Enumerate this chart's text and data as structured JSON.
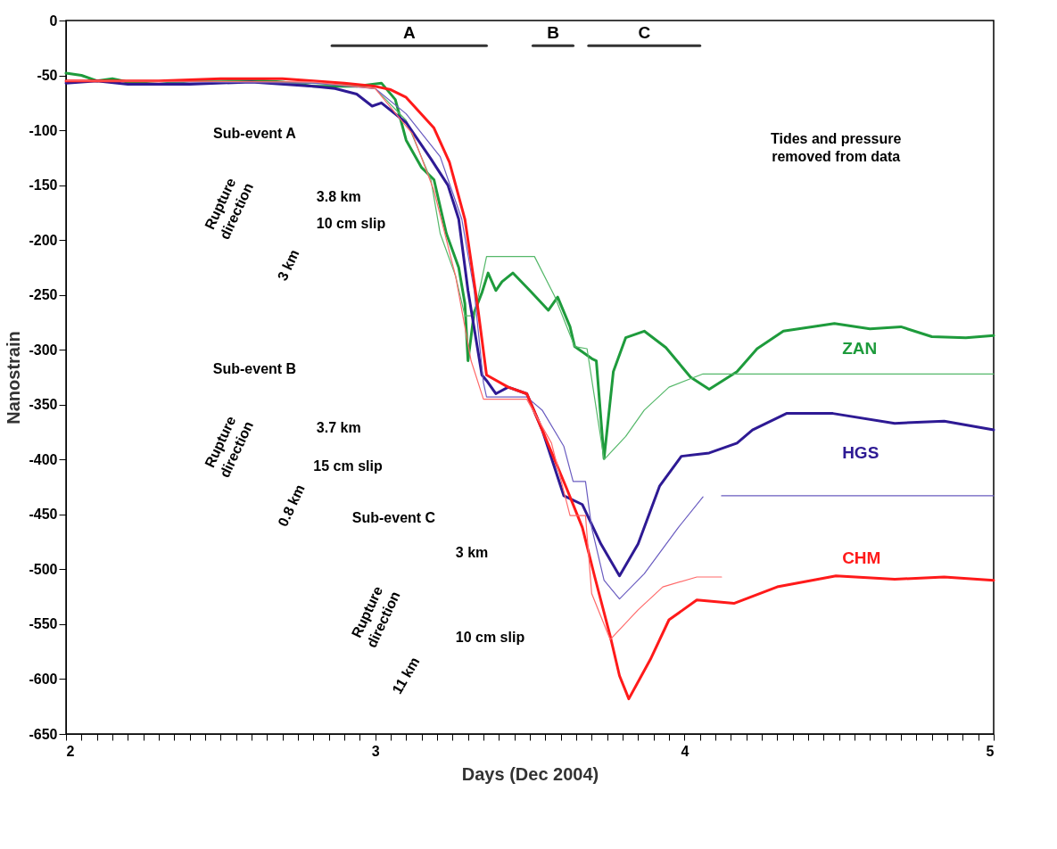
{
  "chart_data": {
    "type": "line",
    "xlabel": "Days (Dec 2004)",
    "ylabel": "Nanostrain",
    "xlim": [
      2,
      5
    ],
    "ylim": [
      -650,
      0
    ],
    "xticks": [
      2,
      {
        "value": 2.05,
        "label": null
      },
      {
        "value": 2.1,
        "label": null
      },
      {
        "value": 2.15,
        "label": null
      },
      {
        "value": 2.2,
        "label": null
      },
      {
        "value": 2.25,
        "label": null
      },
      {
        "value": 2.3,
        "label": null
      },
      {
        "value": 2.35,
        "label": null
      },
      {
        "value": 2.4,
        "label": null
      },
      {
        "value": 2.45,
        "label": null
      },
      {
        "value": 2.5,
        "label": null
      },
      {
        "value": 2.55,
        "label": null
      },
      {
        "value": 2.6,
        "label": null
      },
      {
        "value": 2.65,
        "label": null
      },
      {
        "value": 2.7,
        "label": null
      },
      {
        "value": 2.75,
        "label": null
      },
      {
        "value": 2.8,
        "label": null
      },
      {
        "value": 2.85,
        "label": null
      },
      {
        "value": 2.9,
        "label": null
      },
      {
        "value": 2.95,
        "label": null
      },
      3,
      {
        "value": 3.05,
        "label": null
      },
      {
        "value": 3.1,
        "label": null
      },
      {
        "value": 3.15,
        "label": null
      },
      {
        "value": 3.2,
        "label": null
      },
      {
        "value": 3.25,
        "label": null
      },
      {
        "value": 3.3,
        "label": null
      },
      {
        "value": 3.35,
        "label": null
      },
      {
        "value": 3.4,
        "label": null
      },
      {
        "value": 3.45,
        "label": null
      },
      {
        "value": 3.5,
        "label": null
      },
      {
        "value": 3.55,
        "label": null
      },
      {
        "value": 3.6,
        "label": null
      },
      {
        "value": 3.65,
        "label": null
      },
      {
        "value": 3.7,
        "label": null
      },
      {
        "value": 3.75,
        "label": null
      },
      {
        "value": 3.8,
        "label": null
      },
      {
        "value": 3.85,
        "label": null
      },
      {
        "value": 3.9,
        "label": null
      },
      {
        "value": 3.95,
        "label": null
      },
      4,
      {
        "value": 4.05,
        "label": null
      },
      {
        "value": 4.1,
        "label": null
      },
      {
        "value": 4.15,
        "label": null
      },
      {
        "value": 4.2,
        "label": null
      },
      {
        "value": 4.25,
        "label": null
      },
      {
        "value": 4.3,
        "label": null
      },
      {
        "value": 4.35,
        "label": null
      },
      {
        "value": 4.4,
        "label": null
      },
      {
        "value": 4.45,
        "label": null
      },
      {
        "value": 4.5,
        "label": null
      },
      {
        "value": 4.55,
        "label": null
      },
      {
        "value": 4.6,
        "label": null
      },
      {
        "value": 4.65,
        "label": null
      },
      {
        "value": 4.7,
        "label": null
      },
      {
        "value": 4.75,
        "label": null
      },
      {
        "value": 4.8,
        "label": null
      },
      {
        "value": 4.85,
        "label": null
      },
      {
        "value": 4.9,
        "label": null
      },
      {
        "value": 4.95,
        "label": null
      },
      5
    ],
    "yticks": [
      0,
      -50,
      -100,
      -150,
      -200,
      -250,
      -300,
      -350,
      -400,
      -450,
      -500,
      -550,
      -600,
      -650
    ],
    "grid": false,
    "marker": "none",
    "line_style": "solid",
    "series": [
      {
        "name": "ZAN",
        "color": "#1e9b3c",
        "x": [
          2.0,
          2.05,
          2.1,
          2.15,
          2.2,
          2.3,
          2.4,
          2.5,
          2.6,
          2.7,
          2.8,
          2.87,
          2.94,
          3.02,
          3.065,
          3.1,
          3.15,
          3.19,
          3.23,
          3.27,
          3.29,
          3.3,
          3.32,
          3.345,
          3.365,
          3.39,
          3.41,
          3.445,
          3.5,
          3.56,
          3.59,
          3.63,
          3.645,
          3.7,
          3.715,
          3.74,
          3.77,
          3.81,
          3.87,
          3.94,
          4.02,
          4.08,
          4.17,
          4.235,
          4.32,
          4.485,
          4.6,
          4.7,
          4.8,
          4.91,
          5.0
        ],
        "values": [
          -48,
          -50,
          -55,
          -53,
          -56,
          -58,
          -55,
          -55,
          -54,
          -56,
          -60,
          -60,
          -60,
          -57,
          -72,
          -109,
          -134,
          -145,
          -194,
          -225,
          -258,
          -310,
          -266,
          -248,
          -230,
          -246,
          -238,
          -230,
          -246,
          -264,
          -252,
          -279,
          -297,
          -308,
          -310,
          -399,
          -320,
          -289,
          -283,
          -298,
          -325,
          -336,
          -320,
          -299,
          -283,
          -276,
          -281,
          -279,
          -288,
          -289,
          -287
        ]
      },
      {
        "color": "#55b86a",
        "x": [
          2.0,
          2.5,
          2.9,
          3.0,
          3.1,
          3.18,
          3.21,
          3.26,
          3.29,
          3.32,
          3.36,
          3.515,
          3.58,
          3.645,
          3.685,
          3.74,
          3.81,
          3.87,
          3.95,
          4.06,
          5.0
        ],
        "values": [
          -55,
          -55,
          -58,
          -62,
          -91,
          -145,
          -194,
          -233,
          -269,
          -269,
          -215,
          -215,
          -251,
          -297,
          -299,
          -400,
          -379,
          -355,
          -334,
          -322,
          -322
        ]
      },
      {
        "name": "HGS",
        "color": "#2e1a94",
        "x": [
          2.0,
          2.1,
          2.2,
          2.4,
          2.6,
          2.8,
          2.87,
          2.94,
          2.99,
          3.02,
          3.1,
          3.18,
          3.235,
          3.27,
          3.3,
          3.345,
          3.36,
          3.39,
          3.43,
          3.49,
          3.54,
          3.61,
          3.67,
          3.73,
          3.79,
          3.85,
          3.92,
          3.99,
          4.08,
          4.17,
          4.22,
          4.33,
          4.48,
          4.68,
          4.84,
          5.0
        ],
        "values": [
          -57,
          -55,
          -58,
          -58,
          -56,
          -60,
          -62,
          -67,
          -78,
          -75,
          -93,
          -126,
          -150,
          -181,
          -246,
          -323,
          -328,
          -340,
          -334,
          -340,
          -373,
          -433,
          -441,
          -477,
          -506,
          -477,
          -424,
          -397,
          -394,
          -385,
          -373,
          -358,
          -358,
          -367,
          -365,
          -373
        ]
      },
      {
        "color": "#6a5cc0",
        "x": [
          2.0,
          2.8,
          3.0,
          3.1,
          3.21,
          3.28,
          3.32,
          3.35,
          3.36,
          3.49,
          3.54,
          3.61,
          3.64,
          3.68,
          3.7,
          3.74,
          3.79,
          3.87,
          3.98,
          4.06,
          4.09,
          4.12,
          5.0
        ],
        "values": [
          -55,
          -57,
          -62,
          -85,
          -124,
          -181,
          -246,
          -330,
          -343,
          -343,
          -355,
          -388,
          -420,
          -420,
          -462,
          -510,
          -527,
          -504,
          -462,
          -434,
          null,
          -433,
          -433
        ]
      },
      {
        "name": "CHM",
        "color": "#ff1a1a",
        "x": [
          2.0,
          2.3,
          2.5,
          2.7,
          2.9,
          3.0,
          3.05,
          3.1,
          3.19,
          3.24,
          3.29,
          3.33,
          3.36,
          3.43,
          3.49,
          3.54,
          3.62,
          3.67,
          3.71,
          3.76,
          3.79,
          3.82,
          3.89,
          3.95,
          4.04,
          4.16,
          4.3,
          4.49,
          4.68,
          4.84,
          5.0
        ],
        "values": [
          -55,
          -55,
          -53,
          -53,
          -57,
          -60,
          -63,
          -70,
          -98,
          -129,
          -181,
          -258,
          -323,
          -334,
          -340,
          -373,
          -427,
          -462,
          -507,
          -561,
          -597,
          -618,
          -582,
          -546,
          -528,
          -531,
          -516,
          -506,
          -509,
          -507,
          -510
        ]
      },
      {
        "color": "#ff6a6a",
        "x": [
          2.0,
          2.8,
          3.0,
          3.12,
          3.19,
          3.26,
          3.31,
          3.35,
          3.37,
          3.49,
          3.57,
          3.63,
          3.68,
          3.7,
          3.76,
          3.85,
          3.93,
          4.04,
          4.12
        ],
        "values": [
          -55,
          -56,
          -62,
          -103,
          -155,
          -233,
          -310,
          -345,
          -345,
          -345,
          -385,
          -451,
          -451,
          -522,
          -564,
          -537,
          -516,
          -507,
          -507
        ]
      },
      {
        "name": "A",
        "color": "#333333",
        "x": [
          2.86,
          3.36
        ],
        "values": [
          -23,
          -23
        ]
      },
      {
        "name": "B",
        "color": "#333333",
        "x": [
          3.51,
          3.64
        ],
        "values": [
          -23,
          -23
        ]
      },
      {
        "name": "C",
        "color": "#333333",
        "x": [
          3.69,
          4.05
        ],
        "values": [
          -23,
          -23
        ]
      }
    ],
    "annotations": [
      "Tides and pressure\nremoved from data",
      "Sub-event A",
      "3.8 km",
      "10 cm slip",
      "3 km",
      "Rupture\ndirection",
      "Sub-event B",
      "3.7 km",
      "15 cm slip",
      "0.8 km",
      "Rupture\ndirection",
      "Sub-event C",
      "3 km",
      "10 cm slip",
      "11 km",
      "Rupture\ndirection"
    ]
  }
}
